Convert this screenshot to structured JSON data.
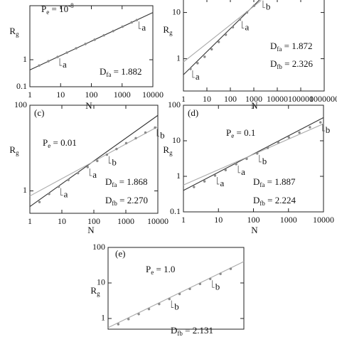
{
  "chart_data": [
    {
      "type": "scatter",
      "xscale": "log",
      "yscale": "log",
      "color": "#8a8a8a",
      "xlim": [
        1,
        10000
      ],
      "ylim": [
        0.1,
        100
      ],
      "xticks": [
        1,
        10,
        100,
        1000,
        10000
      ],
      "yticks": [
        0.1,
        1
      ],
      "xlabel": "N",
      "ylabel": {
        "symbol": "R",
        "subscript": "g"
      },
      "pe": {
        "symbol": "P",
        "subscript": "e",
        "text": " = 10",
        "superscript": "-8"
      },
      "d_labels": [
        {
          "symbol": "D",
          "subscript": "fa",
          "text": " = 1.882"
        }
      ],
      "markers": [
        "a",
        "a"
      ],
      "x": [
        2,
        4,
        8,
        16,
        32,
        64,
        128,
        256,
        512,
        1024,
        2048,
        3000
      ],
      "values": [
        0.61,
        0.88,
        1.27,
        1.83,
        2.65,
        3.82,
        5.5,
        8.0,
        11.5,
        16.7,
        24.1,
        29.4
      ],
      "lines": [
        {
          "color": "#333333",
          "x": [
            1,
            10000
          ],
          "values": [
            0.42,
            56
          ]
        }
      ]
    },
    {
      "type": "scatter",
      "xscale": "log",
      "yscale": "log",
      "color": "#8a8a8a",
      "xlim": [
        1,
        1000000
      ],
      "ylim": [
        0.2,
        20
      ],
      "xticks": [
        1,
        10,
        100,
        1000,
        10000,
        100000,
        1000000
      ],
      "yticks": [
        1,
        10
      ],
      "xlabel": "N",
      "ylabel": {
        "symbol": "R",
        "subscript": "g"
      },
      "d_labels": [
        {
          "symbol": "D",
          "subscript": "fa",
          "text": " = 1.872"
        },
        {
          "symbol": "D",
          "subscript": "fb",
          "text": " = 2.326"
        }
      ],
      "markers": [
        "a",
        "a",
        "b"
      ],
      "x": [
        2,
        4,
        8,
        16,
        32,
        64,
        128,
        256,
        512,
        1024,
        2000
      ],
      "values": [
        0.6,
        0.8,
        1.1,
        1.6,
        2.3,
        3.3,
        4.8,
        7,
        10,
        14,
        19.5
      ],
      "lines": [
        {
          "color": "#333333",
          "x": [
            1,
            2000
          ],
          "values": [
            0.45,
            20
          ]
        },
        {
          "color": "#aaaaaa",
          "x": [
            1,
            2000
          ],
          "values": [
            0.85,
            18
          ]
        }
      ]
    },
    {
      "type": "scatter",
      "xscale": "log",
      "yscale": "log",
      "color": "#8a8a8a",
      "panel_label": "(c)",
      "xlim": [
        1,
        10000
      ],
      "ylim": [
        0.3,
        100
      ],
      "xticks": [
        1,
        10,
        100,
        1000,
        10000
      ],
      "yticks": [
        1,
        100
      ],
      "xlabel": "N",
      "ylabel": {
        "symbol": "R",
        "subscript": "g"
      },
      "pe": {
        "symbol": "P",
        "subscript": "e",
        "text": " = 0.01"
      },
      "d_labels": [
        {
          "symbol": "D",
          "subscript": "fa",
          "text": " = 1.868"
        },
        {
          "symbol": "D",
          "subscript": "fb",
          "text": " = 2.270"
        }
      ],
      "markers": [
        "a",
        "a",
        "b",
        "b"
      ],
      "x": [
        2,
        4,
        8,
        16,
        32,
        64,
        128,
        256,
        512,
        1024,
        2048,
        4096,
        8192
      ],
      "values": [
        0.55,
        0.85,
        1.25,
        1.8,
        2.6,
        3.6,
        5,
        7,
        9.5,
        13,
        17,
        23,
        30
      ],
      "lines": [
        {
          "color": "#333333",
          "x": [
            1,
            10000
          ],
          "values": [
            0.43,
            58
          ]
        },
        {
          "color": "#aaaaaa",
          "x": [
            1,
            10000
          ],
          "values": [
            0.76,
            31.6
          ]
        }
      ]
    },
    {
      "type": "scatter",
      "xscale": "log",
      "yscale": "log",
      "color": "#8a8a8a",
      "panel_label": "(d)",
      "xlim": [
        1,
        10000
      ],
      "ylim": [
        0.1,
        100
      ],
      "xticks": [
        1,
        10,
        100,
        1000,
        10000
      ],
      "yticks": [
        0.1,
        1,
        10,
        100
      ],
      "xlabel": "N",
      "ylabel": {
        "symbol": "R",
        "subscript": "g"
      },
      "pe": {
        "symbol": "P",
        "subscript": "e",
        "text": " = 0.1"
      },
      "d_labels": [
        {
          "symbol": "D",
          "subscript": "fa",
          "text": " = 1.887"
        },
        {
          "symbol": "D",
          "subscript": "fb",
          "text": " = 2.224"
        }
      ],
      "markers": [
        "a",
        "a",
        "b",
        "b"
      ],
      "x": [
        2,
        4,
        8,
        16,
        32,
        64,
        128,
        256,
        512,
        1024,
        2048,
        4096,
        8192
      ],
      "values": [
        0.5,
        0.72,
        1.05,
        1.5,
        2.2,
        3.1,
        4.4,
        6.3,
        9,
        12.5,
        17,
        24,
        33
      ],
      "lines": [
        {
          "color": "#333333",
          "x": [
            1,
            10000
          ],
          "values": [
            0.4,
            45
          ]
        },
        {
          "color": "#aaaaaa",
          "x": [
            1,
            10000
          ],
          "values": [
            0.57,
            30
          ]
        }
      ]
    },
    {
      "type": "scatter",
      "xscale": "log",
      "yscale": "log",
      "color": "#8a8a8a",
      "panel_label": "(e)",
      "xlim": [
        1,
        10000
      ],
      "ylim": [
        0.5,
        100
      ],
      "yticks": [
        1,
        10,
        100
      ],
      "ylabel": {
        "symbol": "R",
        "subscript": "g"
      },
      "pe": {
        "symbol": "P",
        "subscript": "e",
        "text": " = 1.0"
      },
      "d_labels": [
        {
          "symbol": "D",
          "subscript": "fb",
          "text": " = 2.131"
        }
      ],
      "markers": [
        "b",
        "b"
      ],
      "x": [
        2,
        4,
        8,
        16,
        32,
        64,
        128,
        256,
        512,
        1024,
        2048,
        4096
      ],
      "values": [
        0.69,
        0.96,
        1.33,
        1.84,
        2.55,
        3.53,
        4.89,
        6.8,
        9.4,
        13,
        18,
        25
      ],
      "lines": [
        {
          "color": "#aaaaaa",
          "x": [
            1,
            10000
          ],
          "values": [
            0.55,
            40
          ]
        }
      ]
    }
  ]
}
